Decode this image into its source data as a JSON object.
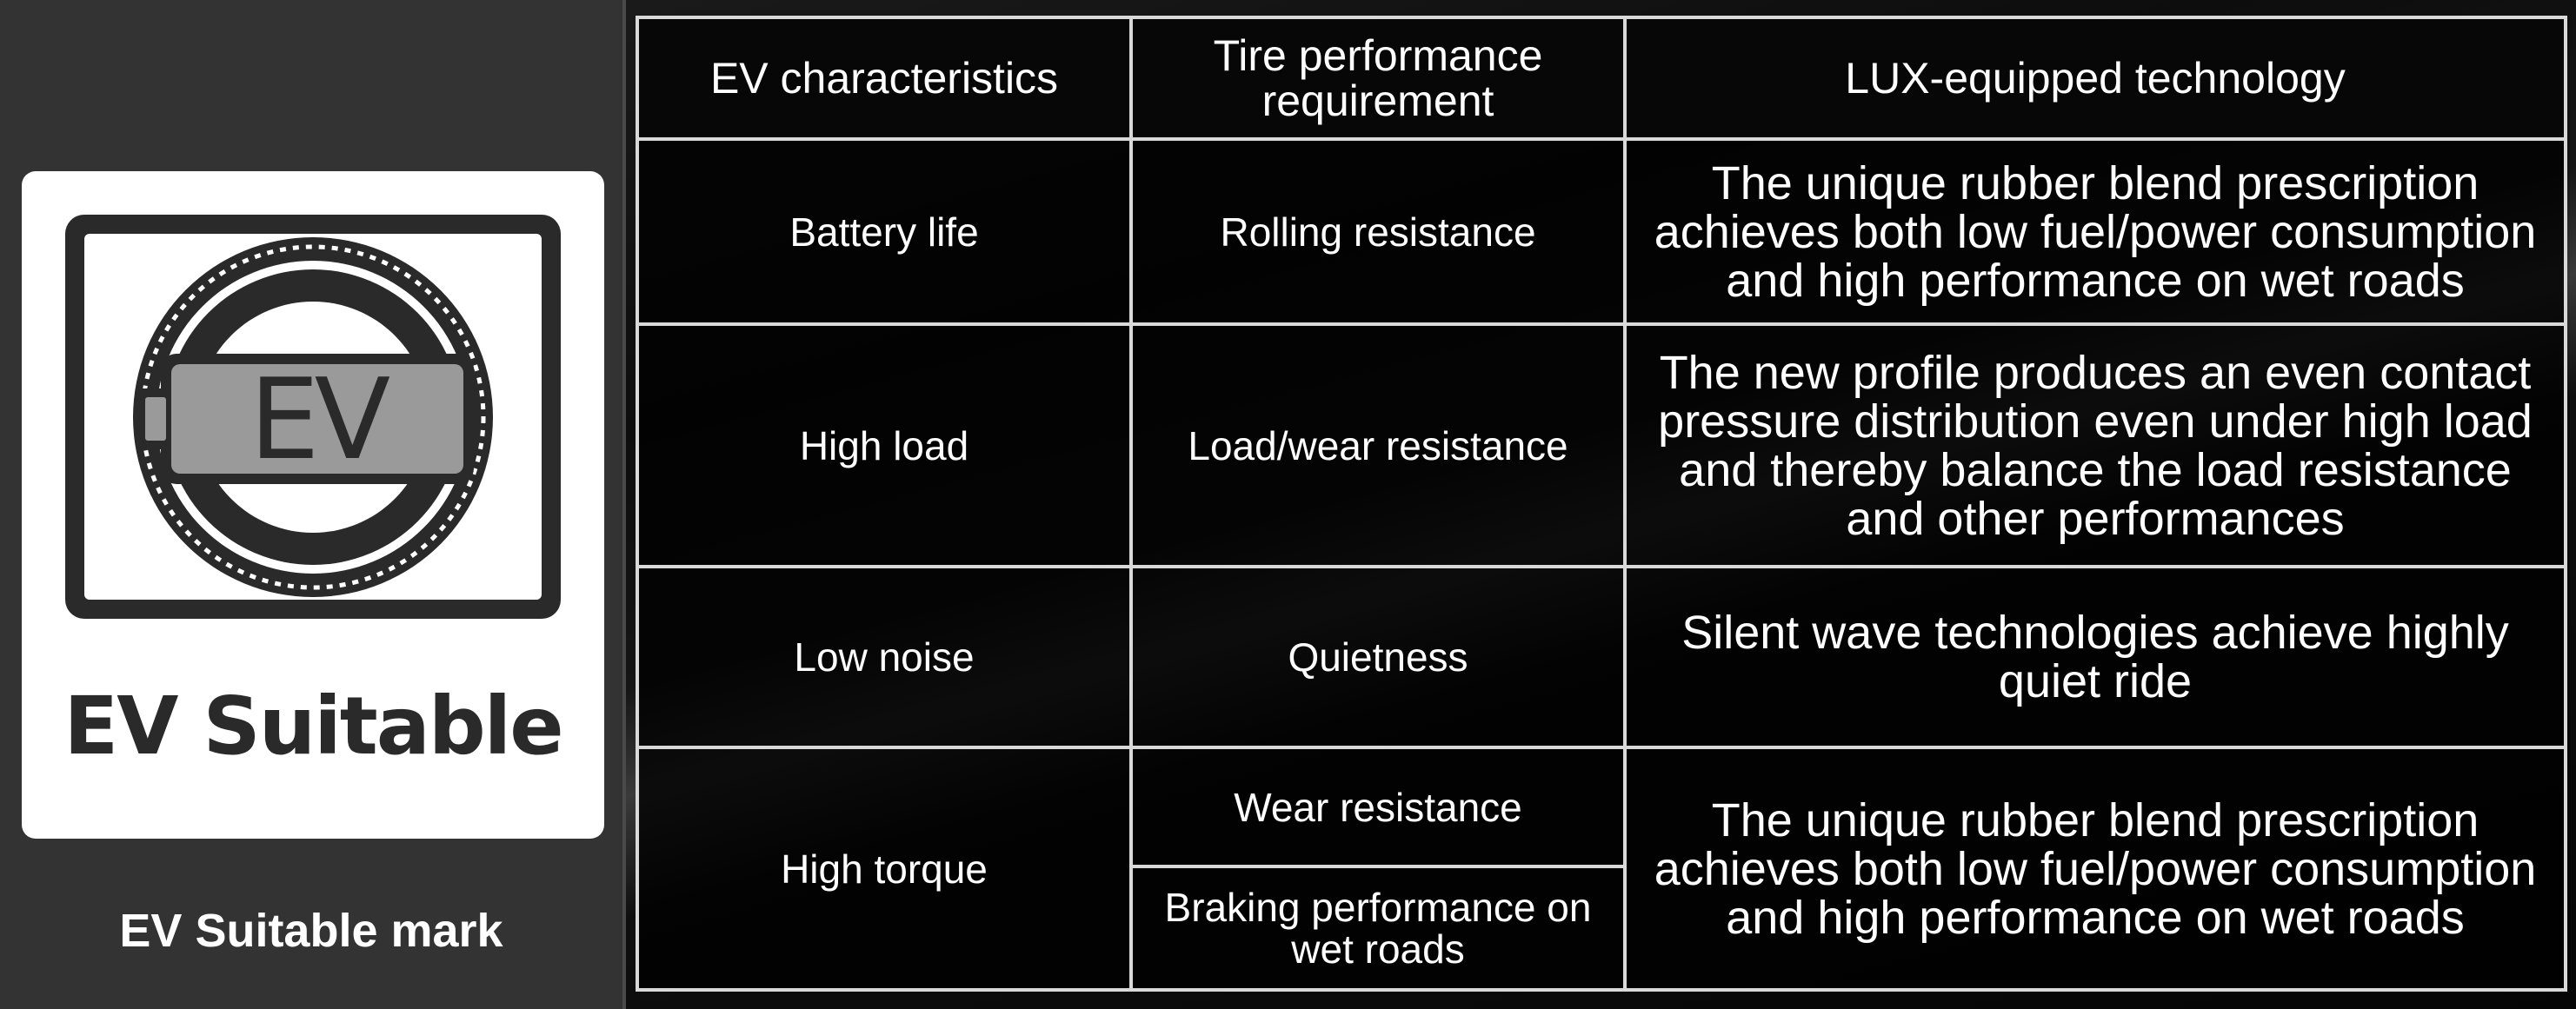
{
  "left_panel": {
    "mark_text": "EV Suitable",
    "mark_icon_text": "EV",
    "caption": "EV Suitable mark"
  },
  "table": {
    "headers": [
      "EV characteristics",
      "Tire performance requirement",
      "LUX-equipped technology"
    ],
    "rows": [
      {
        "characteristic": "Battery life",
        "requirements": [
          "Rolling resistance"
        ],
        "technology": "The unique rubber blend prescription achieves both low fuel/power consumption and high performance on wet roads"
      },
      {
        "characteristic": "High load",
        "requirements": [
          "Load/wear resistance"
        ],
        "technology": "The new profile produces an even contact pressure distribution even under high load and thereby balance the load resistance and other performances"
      },
      {
        "characteristic": "Low noise",
        "requirements": [
          "Quietness"
        ],
        "technology": "Silent wave technologies achieve highly quiet ride"
      },
      {
        "characteristic": "High torque",
        "requirements": [
          "Wear resistance",
          "Braking performance on wet roads"
        ],
        "technology": "The unique rubber blend prescription achieves both low fuel/power consumption and high performance on wet roads"
      }
    ]
  },
  "colors": {
    "left_background": "#333333",
    "card_background": "#ffffff",
    "table_border": "#d9d9d9",
    "text": "#ffffff",
    "icon_dark": "#2a2a2a",
    "icon_gray": "#999999"
  }
}
